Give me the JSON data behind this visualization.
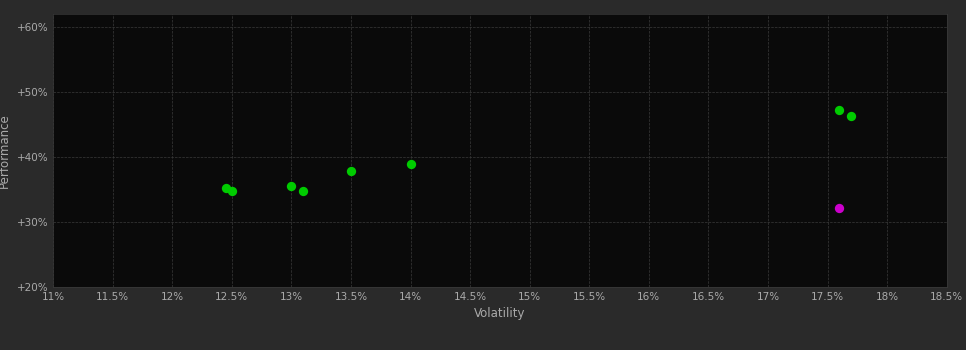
{
  "background_color": "#2a2a2a",
  "plot_bg_color": "#0a0a0a",
  "grid_color": "#3a3a3a",
  "text_color": "#aaaaaa",
  "xlabel": "Volatility",
  "ylabel": "Performance",
  "xlim": [
    0.11,
    0.185
  ],
  "ylim": [
    0.2,
    0.62
  ],
  "xtick_values": [
    0.11,
    0.115,
    0.12,
    0.125,
    0.13,
    0.135,
    0.14,
    0.145,
    0.15,
    0.155,
    0.16,
    0.165,
    0.17,
    0.175,
    0.18,
    0.185
  ],
  "ytick_values": [
    0.2,
    0.3,
    0.4,
    0.5,
    0.6
  ],
  "green_points": [
    [
      0.1245,
      0.352
    ],
    [
      0.125,
      0.347
    ],
    [
      0.13,
      0.356
    ],
    [
      0.131,
      0.348
    ],
    [
      0.135,
      0.378
    ],
    [
      0.14,
      0.39
    ],
    [
      0.176,
      0.473
    ],
    [
      0.177,
      0.463
    ]
  ],
  "magenta_points": [
    [
      0.176,
      0.322
    ]
  ],
  "point_size": 45,
  "green_color": "#00cc00",
  "magenta_color": "#cc00cc",
  "figsize": [
    9.66,
    3.5
  ],
  "dpi": 100
}
